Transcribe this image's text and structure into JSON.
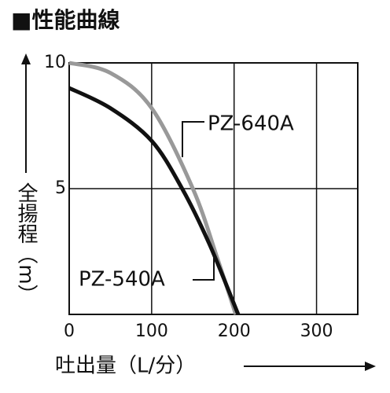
{
  "chart_data": {
    "type": "line",
    "title": "■性能曲線",
    "x_label": "吐出量（L/分）",
    "y_label": "全揚程（m）",
    "xlim": [
      0,
      350
    ],
    "ylim": [
      0,
      10
    ],
    "xticks": [
      0,
      100,
      200,
      300
    ],
    "yticks": [
      5,
      10
    ],
    "grid": true,
    "series": [
      {
        "name": "PZ-640A",
        "color": "#999999",
        "x": [
          0,
          50,
          100,
          150,
          180,
          202
        ],
        "values": [
          10,
          9.6,
          8.2,
          5,
          2.2,
          0
        ]
      },
      {
        "name": "PZ-540A",
        "color": "#111111",
        "x": [
          0,
          50,
          100,
          137,
          170,
          205
        ],
        "values": [
          9,
          8.2,
          6.9,
          5,
          2.8,
          0
        ]
      }
    ]
  }
}
